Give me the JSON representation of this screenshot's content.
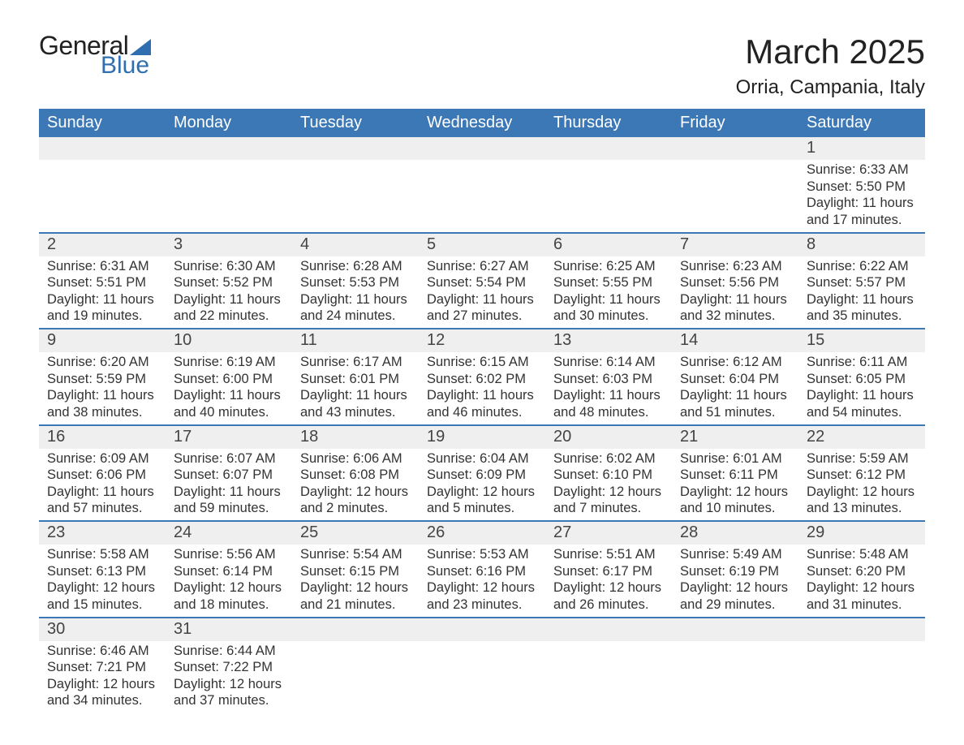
{
  "logo": {
    "text_general": "General",
    "text_blue": "Blue"
  },
  "title": "March 2025",
  "location": "Orria, Campania, Italy",
  "colors": {
    "header_bg": "#3b78b5",
    "header_text": "#ffffff",
    "daynum_bg": "#efefef",
    "row_border": "#3b78b5",
    "logo_accent": "#2f6fb0",
    "text": "#333333",
    "background": "#ffffff"
  },
  "layout": {
    "columns": 7,
    "rows": 6,
    "font_family": "Arial",
    "title_fontsize": 42,
    "location_fontsize": 24,
    "header_fontsize": 20,
    "daynum_fontsize": 20,
    "body_fontsize": 16.5
  },
  "weekdays": [
    "Sunday",
    "Monday",
    "Tuesday",
    "Wednesday",
    "Thursday",
    "Friday",
    "Saturday"
  ],
  "weeks": [
    [
      null,
      null,
      null,
      null,
      null,
      null,
      {
        "n": "1",
        "sunrise": "Sunrise: 6:33 AM",
        "sunset": "Sunset: 5:50 PM",
        "daylight": "Daylight: 11 hours and 17 minutes."
      }
    ],
    [
      {
        "n": "2",
        "sunrise": "Sunrise: 6:31 AM",
        "sunset": "Sunset: 5:51 PM",
        "daylight": "Daylight: 11 hours and 19 minutes."
      },
      {
        "n": "3",
        "sunrise": "Sunrise: 6:30 AM",
        "sunset": "Sunset: 5:52 PM",
        "daylight": "Daylight: 11 hours and 22 minutes."
      },
      {
        "n": "4",
        "sunrise": "Sunrise: 6:28 AM",
        "sunset": "Sunset: 5:53 PM",
        "daylight": "Daylight: 11 hours and 24 minutes."
      },
      {
        "n": "5",
        "sunrise": "Sunrise: 6:27 AM",
        "sunset": "Sunset: 5:54 PM",
        "daylight": "Daylight: 11 hours and 27 minutes."
      },
      {
        "n": "6",
        "sunrise": "Sunrise: 6:25 AM",
        "sunset": "Sunset: 5:55 PM",
        "daylight": "Daylight: 11 hours and 30 minutes."
      },
      {
        "n": "7",
        "sunrise": "Sunrise: 6:23 AM",
        "sunset": "Sunset: 5:56 PM",
        "daylight": "Daylight: 11 hours and 32 minutes."
      },
      {
        "n": "8",
        "sunrise": "Sunrise: 6:22 AM",
        "sunset": "Sunset: 5:57 PM",
        "daylight": "Daylight: 11 hours and 35 minutes."
      }
    ],
    [
      {
        "n": "9",
        "sunrise": "Sunrise: 6:20 AM",
        "sunset": "Sunset: 5:59 PM",
        "daylight": "Daylight: 11 hours and 38 minutes."
      },
      {
        "n": "10",
        "sunrise": "Sunrise: 6:19 AM",
        "sunset": "Sunset: 6:00 PM",
        "daylight": "Daylight: 11 hours and 40 minutes."
      },
      {
        "n": "11",
        "sunrise": "Sunrise: 6:17 AM",
        "sunset": "Sunset: 6:01 PM",
        "daylight": "Daylight: 11 hours and 43 minutes."
      },
      {
        "n": "12",
        "sunrise": "Sunrise: 6:15 AM",
        "sunset": "Sunset: 6:02 PM",
        "daylight": "Daylight: 11 hours and 46 minutes."
      },
      {
        "n": "13",
        "sunrise": "Sunrise: 6:14 AM",
        "sunset": "Sunset: 6:03 PM",
        "daylight": "Daylight: 11 hours and 48 minutes."
      },
      {
        "n": "14",
        "sunrise": "Sunrise: 6:12 AM",
        "sunset": "Sunset: 6:04 PM",
        "daylight": "Daylight: 11 hours and 51 minutes."
      },
      {
        "n": "15",
        "sunrise": "Sunrise: 6:11 AM",
        "sunset": "Sunset: 6:05 PM",
        "daylight": "Daylight: 11 hours and 54 minutes."
      }
    ],
    [
      {
        "n": "16",
        "sunrise": "Sunrise: 6:09 AM",
        "sunset": "Sunset: 6:06 PM",
        "daylight": "Daylight: 11 hours and 57 minutes."
      },
      {
        "n": "17",
        "sunrise": "Sunrise: 6:07 AM",
        "sunset": "Sunset: 6:07 PM",
        "daylight": "Daylight: 11 hours and 59 minutes."
      },
      {
        "n": "18",
        "sunrise": "Sunrise: 6:06 AM",
        "sunset": "Sunset: 6:08 PM",
        "daylight": "Daylight: 12 hours and 2 minutes."
      },
      {
        "n": "19",
        "sunrise": "Sunrise: 6:04 AM",
        "sunset": "Sunset: 6:09 PM",
        "daylight": "Daylight: 12 hours and 5 minutes."
      },
      {
        "n": "20",
        "sunrise": "Sunrise: 6:02 AM",
        "sunset": "Sunset: 6:10 PM",
        "daylight": "Daylight: 12 hours and 7 minutes."
      },
      {
        "n": "21",
        "sunrise": "Sunrise: 6:01 AM",
        "sunset": "Sunset: 6:11 PM",
        "daylight": "Daylight: 12 hours and 10 minutes."
      },
      {
        "n": "22",
        "sunrise": "Sunrise: 5:59 AM",
        "sunset": "Sunset: 6:12 PM",
        "daylight": "Daylight: 12 hours and 13 minutes."
      }
    ],
    [
      {
        "n": "23",
        "sunrise": "Sunrise: 5:58 AM",
        "sunset": "Sunset: 6:13 PM",
        "daylight": "Daylight: 12 hours and 15 minutes."
      },
      {
        "n": "24",
        "sunrise": "Sunrise: 5:56 AM",
        "sunset": "Sunset: 6:14 PM",
        "daylight": "Daylight: 12 hours and 18 minutes."
      },
      {
        "n": "25",
        "sunrise": "Sunrise: 5:54 AM",
        "sunset": "Sunset: 6:15 PM",
        "daylight": "Daylight: 12 hours and 21 minutes."
      },
      {
        "n": "26",
        "sunrise": "Sunrise: 5:53 AM",
        "sunset": "Sunset: 6:16 PM",
        "daylight": "Daylight: 12 hours and 23 minutes."
      },
      {
        "n": "27",
        "sunrise": "Sunrise: 5:51 AM",
        "sunset": "Sunset: 6:17 PM",
        "daylight": "Daylight: 12 hours and 26 minutes."
      },
      {
        "n": "28",
        "sunrise": "Sunrise: 5:49 AM",
        "sunset": "Sunset: 6:19 PM",
        "daylight": "Daylight: 12 hours and 29 minutes."
      },
      {
        "n": "29",
        "sunrise": "Sunrise: 5:48 AM",
        "sunset": "Sunset: 6:20 PM",
        "daylight": "Daylight: 12 hours and 31 minutes."
      }
    ],
    [
      {
        "n": "30",
        "sunrise": "Sunrise: 6:46 AM",
        "sunset": "Sunset: 7:21 PM",
        "daylight": "Daylight: 12 hours and 34 minutes."
      },
      {
        "n": "31",
        "sunrise": "Sunrise: 6:44 AM",
        "sunset": "Sunset: 7:22 PM",
        "daylight": "Daylight: 12 hours and 37 minutes."
      },
      null,
      null,
      null,
      null,
      null
    ]
  ]
}
